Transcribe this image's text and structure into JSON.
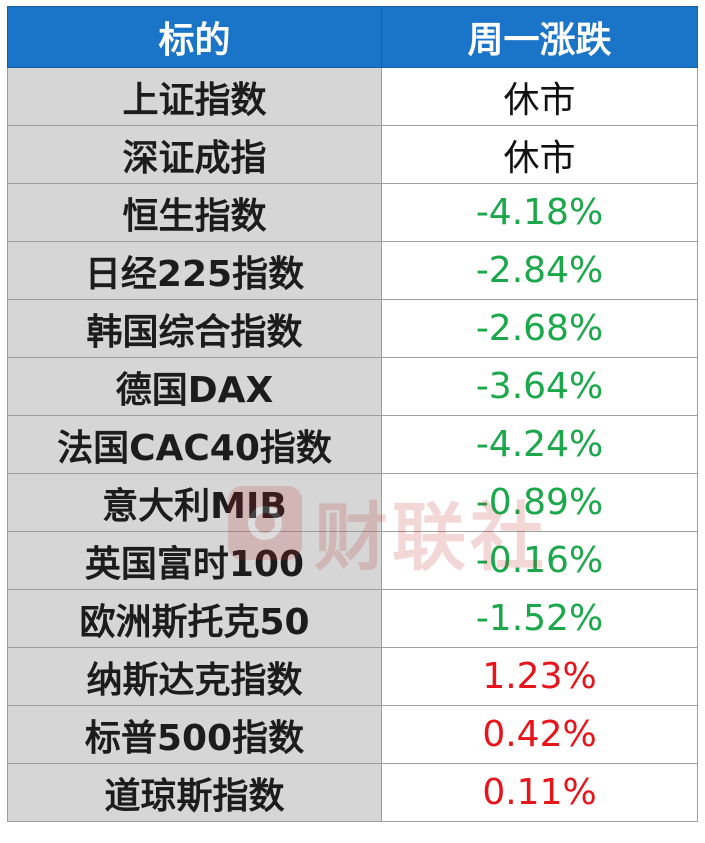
{
  "header": {
    "col_name": "标的",
    "col_change": "周一涨跌"
  },
  "rows": [
    {
      "name": "上证指数",
      "change": "休市",
      "trend": "neutral"
    },
    {
      "name": "深证成指",
      "change": "休市",
      "trend": "neutral"
    },
    {
      "name": "恒生指数",
      "change": "-4.18%",
      "trend": "down"
    },
    {
      "name": "日经225指数",
      "change": "-2.84%",
      "trend": "down"
    },
    {
      "name": "韩国综合指数",
      "change": "-2.68%",
      "trend": "down"
    },
    {
      "name": "德国DAX",
      "change": "-3.64%",
      "trend": "down"
    },
    {
      "name": "法国CAC40指数",
      "change": "-4.24%",
      "trend": "down"
    },
    {
      "name": "意大利MIB",
      "change": "-0.89%",
      "trend": "down"
    },
    {
      "name": "英国富时100",
      "change": "-0.16%",
      "trend": "down"
    },
    {
      "name": "欧洲斯托克50",
      "change": "-1.52%",
      "trend": "down"
    },
    {
      "name": "纳斯达克指数",
      "change": "1.23%",
      "trend": "up"
    },
    {
      "name": "标普500指数",
      "change": "0.42%",
      "trend": "up"
    },
    {
      "name": "道琼斯指数",
      "change": "0.11%",
      "trend": "up"
    }
  ],
  "colors": {
    "header_bg": "#1a74c7",
    "name_bg": "#d6d6d6",
    "down": "#1aa84a",
    "up": "#e8141b",
    "neutral": "#111111"
  },
  "watermark": {
    "text": "财联社",
    "icon": "cailianshe-logo-icon"
  }
}
